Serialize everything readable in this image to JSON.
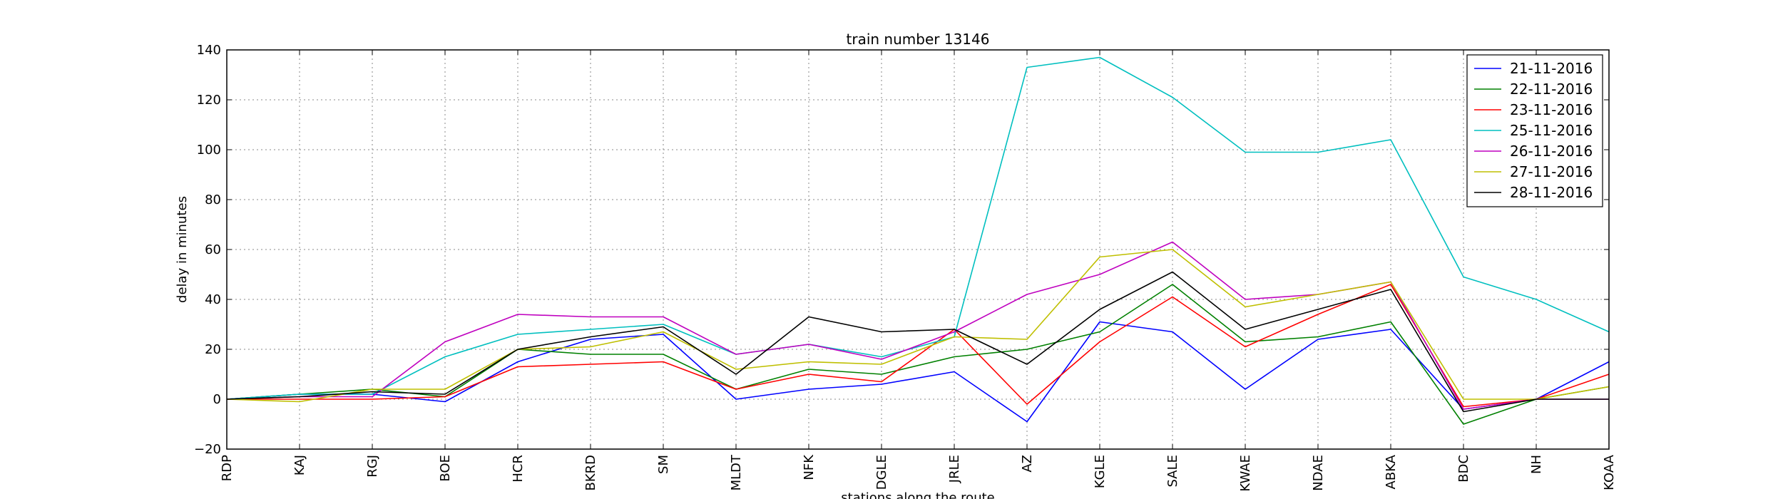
{
  "chart_data": {
    "type": "line",
    "title": "train number 13146",
    "xlabel": "stations along the route",
    "ylabel": "delay in minutes",
    "ylim": [
      -20,
      140
    ],
    "yticks": [
      -20,
      0,
      20,
      40,
      60,
      80,
      100,
      120,
      140
    ],
    "grid": true,
    "legend_position": "top-right",
    "categories": [
      "RDP",
      "KAJ",
      "RGJ",
      "BOE",
      "HCR",
      "BKRD",
      "SM",
      "MLDT",
      "NFK",
      "DGLE",
      "JRLE",
      "AZ",
      "KGLE",
      "SALE",
      "KWAE",
      "NDAE",
      "ABKA",
      "BDC",
      "NH",
      "KOAA"
    ],
    "series": [
      {
        "name": "21-11-2016",
        "color": "#0000ff",
        "values": [
          0,
          2,
          2,
          -1,
          15,
          24,
          26,
          0,
          4,
          6,
          11,
          -9,
          31,
          27,
          4,
          24,
          28,
          -4,
          0,
          15
        ]
      },
      {
        "name": "22-11-2016",
        "color": "#008000",
        "values": [
          0,
          2,
          4,
          1,
          20,
          18,
          18,
          4,
          12,
          10,
          17,
          20,
          27,
          46,
          23,
          25,
          31,
          -10,
          0,
          5
        ]
      },
      {
        "name": "23-11-2016",
        "color": "#ff0000",
        "values": [
          0,
          0,
          0,
          1,
          13,
          14,
          15,
          4,
          10,
          7,
          28,
          -2,
          23,
          41,
          21,
          34,
          46,
          -3,
          0,
          10
        ]
      },
      {
        "name": "25-11-2016",
        "color": "#00bfbf",
        "values": [
          0,
          2,
          2,
          17,
          26,
          28,
          30,
          18,
          22,
          17,
          25,
          133,
          137,
          121,
          99,
          99,
          104,
          49,
          40,
          27
        ]
      },
      {
        "name": "26-11-2016",
        "color": "#bf00bf",
        "values": [
          0,
          1,
          1,
          23,
          34,
          33,
          33,
          18,
          22,
          16,
          27,
          42,
          50,
          63,
          40,
          42,
          47,
          -4,
          0,
          0
        ]
      },
      {
        "name": "27-11-2016",
        "color": "#bfbf00",
        "values": [
          0,
          -1,
          4,
          4,
          20,
          21,
          27,
          12,
          15,
          14,
          25,
          24,
          57,
          60,
          37,
          42,
          47,
          0,
          0,
          5
        ]
      },
      {
        "name": "28-11-2016",
        "color": "#000000",
        "values": [
          0,
          1,
          3,
          2,
          20,
          25,
          29,
          10,
          33,
          27,
          28,
          14,
          36,
          51,
          28,
          36,
          44,
          -5,
          0,
          0
        ]
      }
    ]
  }
}
